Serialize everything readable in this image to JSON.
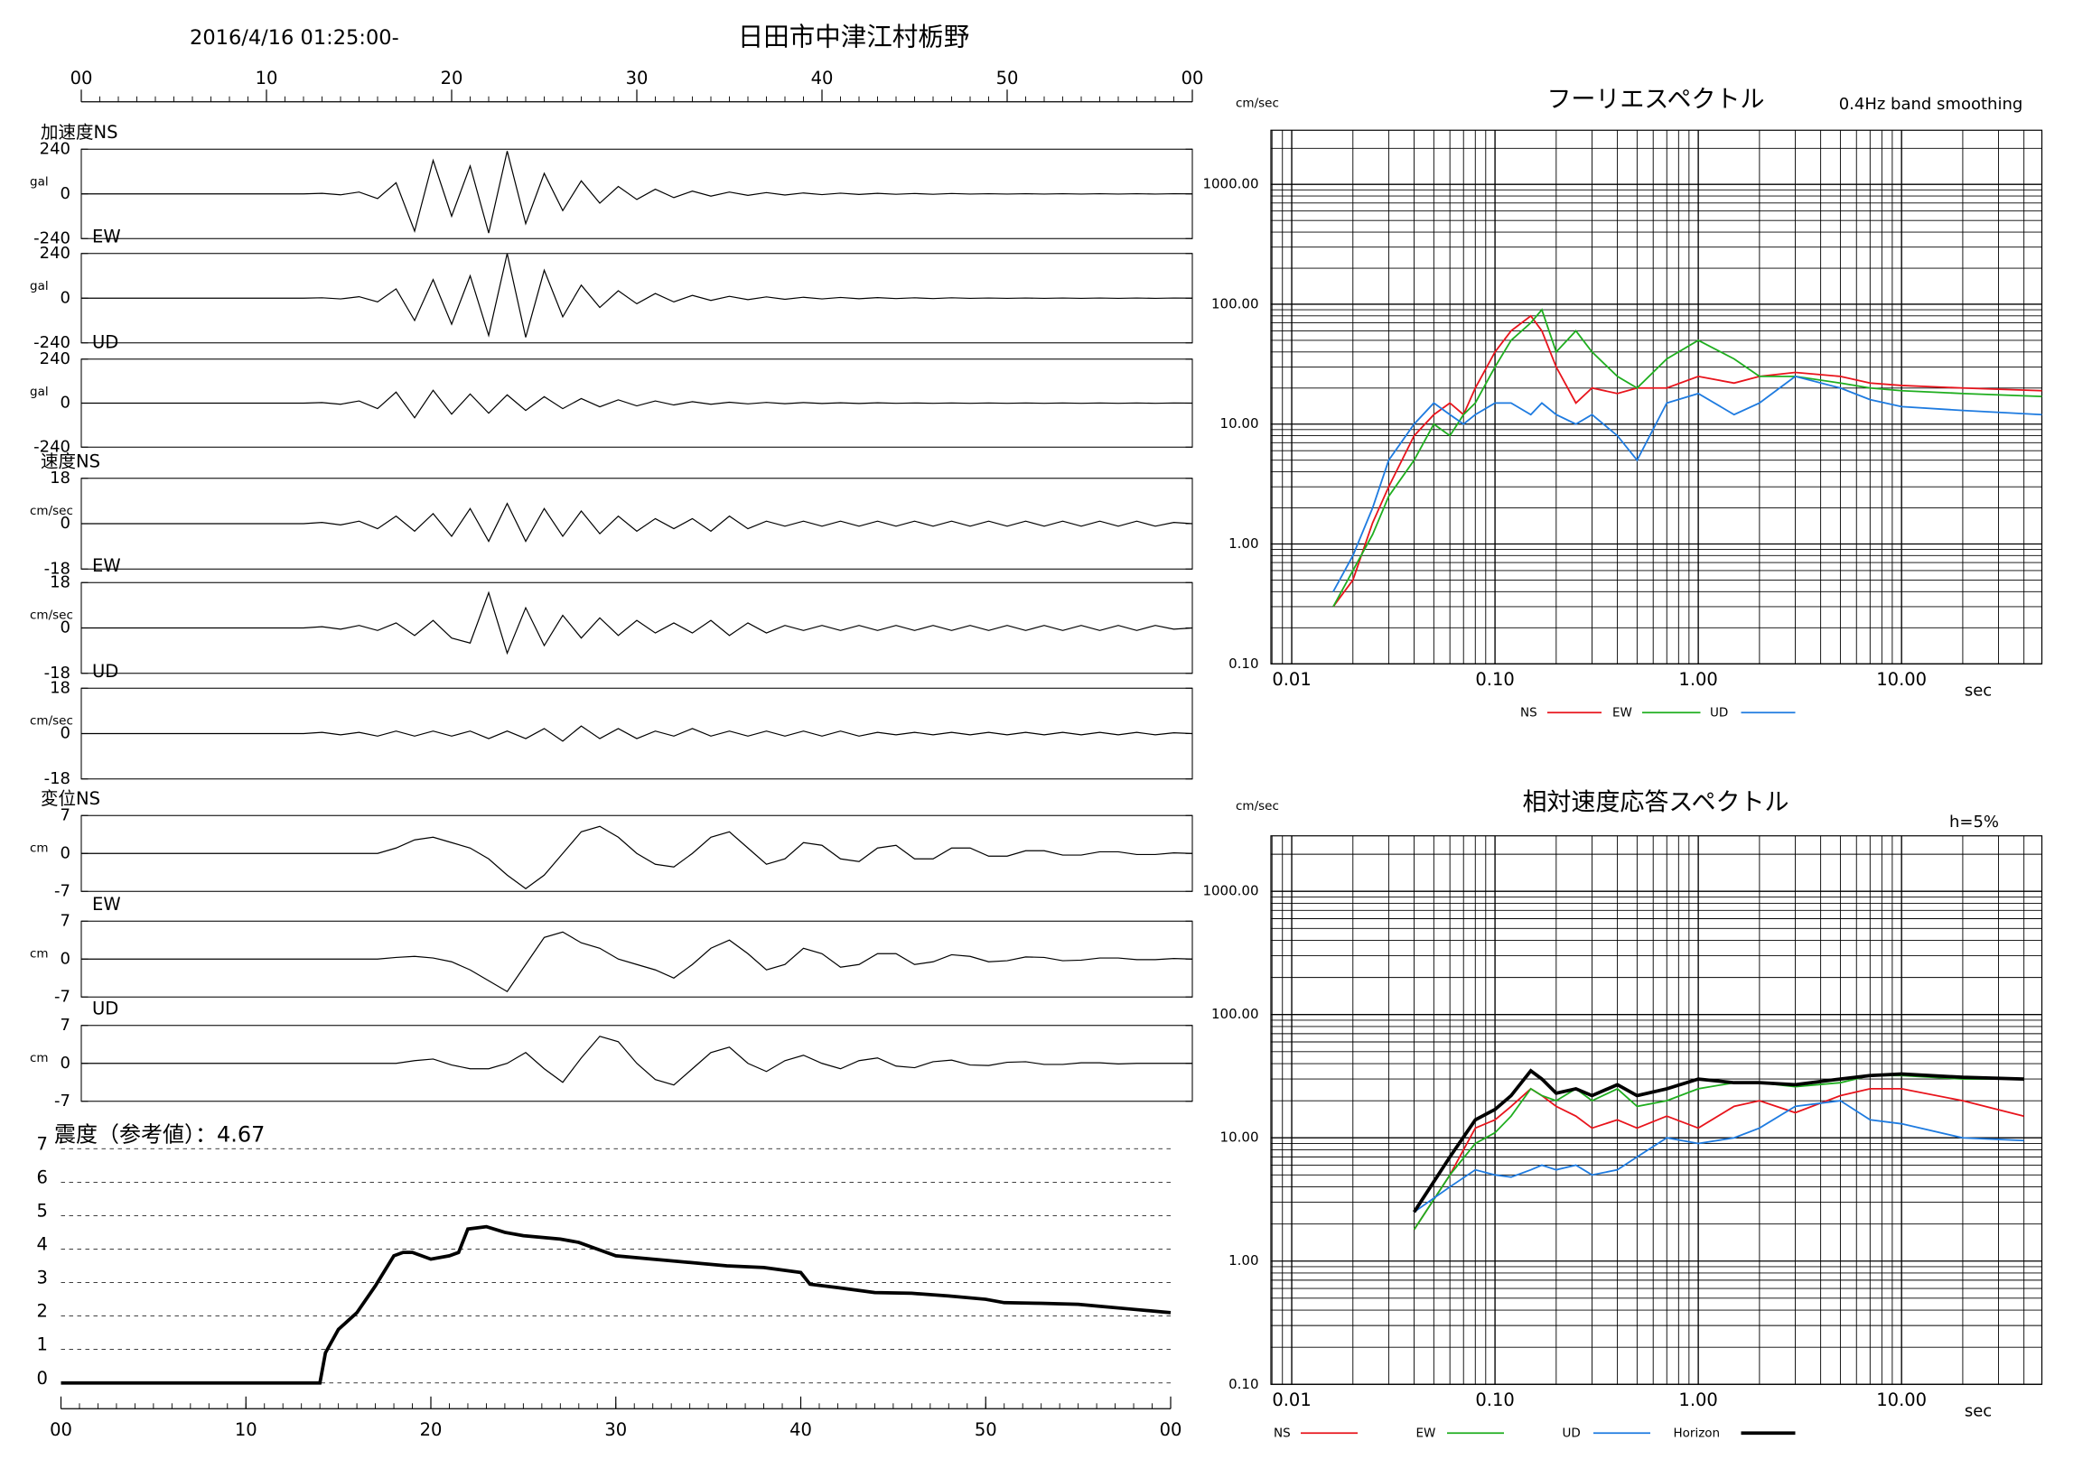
{
  "header": {
    "datetime": "2016/4/16 01:25:00-",
    "location": "日田市中津江村栃野"
  },
  "chart_data": [
    {
      "type": "waveform",
      "color": "#000000",
      "xlim": [
        0,
        60
      ],
      "xticks": [
        {
          "value": 0,
          "label": "00"
        },
        10,
        20,
        30,
        40,
        50,
        {
          "value": 60,
          "label": "00"
        }
      ],
      "x": [
        0,
        1,
        2,
        3,
        4,
        5,
        6,
        7,
        8,
        9,
        10,
        11,
        12,
        13,
        14,
        15,
        16,
        17,
        18,
        19,
        20,
        21,
        22,
        23,
        24,
        25,
        26,
        27,
        28,
        29,
        30,
        31,
        32,
        33,
        34,
        35,
        36,
        37,
        38,
        39,
        40,
        41,
        42,
        43,
        44,
        45,
        46,
        47,
        48,
        49,
        50,
        51,
        52,
        53,
        54,
        55,
        56,
        57,
        58,
        59,
        60
      ],
      "series": [
        {
          "name": "加速度NS",
          "ylabel": "gal",
          "ylim": [
            -240,
            240
          ],
          "yticks": [
            -240,
            0,
            240
          ],
          "values": [
            0,
            0,
            0,
            0,
            0,
            0,
            0,
            0,
            0,
            0,
            0,
            0,
            0,
            3,
            -5,
            10,
            -25,
            60,
            -200,
            180,
            -120,
            150,
            -210,
            230,
            -160,
            110,
            -90,
            70,
            -50,
            40,
            -30,
            25,
            -20,
            15,
            -12,
            10,
            -8,
            7,
            -6,
            5,
            -4,
            4,
            -3,
            3,
            -2,
            2,
            -2,
            2,
            -1,
            1,
            -1,
            1,
            -1,
            1,
            -1,
            1,
            -1,
            1,
            -1,
            1,
            0
          ]
        },
        {
          "name": "EW",
          "ylabel": "gal",
          "ylim": [
            -240,
            240
          ],
          "yticks": [
            -240,
            0,
            240
          ],
          "values": [
            0,
            0,
            0,
            0,
            0,
            0,
            0,
            0,
            0,
            0,
            0,
            0,
            0,
            2,
            -4,
            8,
            -20,
            50,
            -120,
            100,
            -140,
            120,
            -200,
            240,
            -210,
            150,
            -100,
            70,
            -50,
            40,
            -30,
            25,
            -20,
            15,
            -12,
            10,
            -8,
            7,
            -6,
            5,
            -4,
            4,
            -3,
            3,
            -2,
            2,
            -2,
            2,
            -1,
            1,
            -1,
            1,
            -1,
            1,
            -1,
            1,
            -1,
            1,
            -1,
            1,
            0
          ]
        },
        {
          "name": "UD",
          "ylabel": "gal",
          "ylim": [
            -240,
            240
          ],
          "yticks": [
            -240,
            0,
            240
          ],
          "values": [
            0,
            0,
            0,
            0,
            0,
            0,
            0,
            0,
            0,
            0,
            0,
            0,
            0,
            3,
            -6,
            12,
            -30,
            60,
            -80,
            70,
            -60,
            50,
            -55,
            45,
            -40,
            35,
            -30,
            25,
            -20,
            18,
            -15,
            12,
            -10,
            8,
            -6,
            5,
            -4,
            4,
            -3,
            3,
            -2,
            2,
            -2,
            2,
            -1,
            1,
            -1,
            1,
            -1,
            1,
            -1,
            1,
            -1,
            1,
            -1,
            1,
            -1,
            1,
            -1,
            1,
            0
          ]
        },
        {
          "name": "速度NS",
          "ylabel": "cm/sec",
          "ylim": [
            -18,
            18
          ],
          "yticks": [
            -18,
            0,
            18
          ],
          "values": [
            0,
            0,
            0,
            0,
            0,
            0,
            0,
            0,
            0,
            0,
            0,
            0,
            0,
            0.5,
            -0.5,
            1,
            -2,
            3,
            -3,
            4,
            -5,
            6,
            -7,
            8,
            -7,
            6,
            -5,
            5,
            -4,
            3,
            -3,
            2,
            -2,
            2,
            -3,
            3,
            -2,
            1,
            -1,
            1,
            -1,
            1,
            -1,
            1,
            -1,
            1,
            -1,
            1,
            -1,
            1,
            -1,
            1,
            -1,
            1,
            -1,
            1,
            -1,
            1,
            -1,
            0.5,
            0
          ]
        },
        {
          "name": "EW",
          "ylabel": "cm/sec",
          "ylim": [
            -18,
            18
          ],
          "yticks": [
            -18,
            0,
            18
          ],
          "values": [
            0,
            0,
            0,
            0,
            0,
            0,
            0,
            0,
            0,
            0,
            0,
            0,
            0,
            0.5,
            -0.5,
            1,
            -1,
            2,
            -3,
            3,
            -4,
            -6,
            14,
            -10,
            8,
            -7,
            5,
            -4,
            4,
            -3,
            3,
            -2,
            2,
            -2,
            3,
            -3,
            2,
            -2,
            1,
            -1,
            1,
            -1,
            1,
            -1,
            1,
            -1,
            1,
            -1,
            1,
            -1,
            1,
            -1,
            1,
            -1,
            1,
            -1,
            1,
            -1,
            1,
            -0.5,
            0
          ]
        },
        {
          "name": "UD",
          "ylabel": "cm/sec",
          "ylim": [
            -18,
            18
          ],
          "yticks": [
            -18,
            0,
            18
          ],
          "values": [
            0,
            0,
            0,
            0,
            0,
            0,
            0,
            0,
            0,
            0,
            0,
            0,
            0,
            0.5,
            -0.5,
            0.5,
            -1,
            1,
            -1,
            1,
            -1,
            1,
            -2,
            1,
            -2,
            2,
            -3,
            3,
            -2,
            2,
            -2,
            1,
            -1,
            2,
            -1,
            1,
            -1,
            1,
            -1,
            1,
            -1,
            1,
            -1,
            0.5,
            -0.5,
            0.5,
            -0.5,
            0.5,
            -0.5,
            0.5,
            -0.5,
            0.5,
            -0.5,
            0.5,
            -0.5,
            0.5,
            -0.5,
            0.5,
            -0.5,
            0.3,
            0
          ]
        },
        {
          "name": "変位NS",
          "ylabel": "cm",
          "ylim": [
            -7,
            7
          ],
          "yticks": [
            -7,
            0,
            7
          ],
          "values": [
            0,
            0,
            0,
            0,
            0,
            0,
            0,
            0,
            0,
            0,
            0,
            0,
            0,
            0,
            0,
            0,
            0,
            1,
            2.5,
            3,
            2,
            1,
            -1,
            -4,
            -6.5,
            -4,
            0,
            4,
            5,
            3,
            0,
            -2,
            -2.5,
            0,
            3,
            4,
            1,
            -2,
            -1,
            2,
            1.5,
            -1,
            -1.5,
            1,
            1.5,
            -1,
            -1,
            1,
            1,
            -0.5,
            -0.5,
            0.5,
            0.5,
            -0.3,
            -0.3,
            0.3,
            0.3,
            -0.2,
            -0.2,
            0.1,
            0
          ]
        },
        {
          "name": "EW",
          "ylabel": "cm",
          "ylim": [
            -7,
            7
          ],
          "yticks": [
            -7,
            0,
            7
          ],
          "values": [
            0,
            0,
            0,
            0,
            0,
            0,
            0,
            0,
            0,
            0,
            0,
            0,
            0,
            0,
            0,
            0,
            0,
            0.3,
            0.5,
            0.2,
            -0.5,
            -2,
            -4,
            -6,
            -1,
            4,
            5,
            3,
            2,
            0,
            -1,
            -2,
            -3.5,
            -1,
            2,
            3.5,
            1,
            -2,
            -1,
            2,
            1,
            -1.5,
            -1,
            1,
            1,
            -1,
            -0.5,
            0.8,
            0.5,
            -0.5,
            -0.3,
            0.4,
            0.3,
            -0.3,
            -0.2,
            0.2,
            0.2,
            -0.1,
            -0.1,
            0.1,
            0
          ]
        },
        {
          "name": "UD",
          "ylabel": "cm",
          "ylim": [
            -7,
            7
          ],
          "yticks": [
            -7,
            0,
            7
          ],
          "values": [
            0,
            0,
            0,
            0,
            0,
            0,
            0,
            0,
            0,
            0,
            0,
            0,
            0,
            0,
            0,
            0,
            0,
            0,
            0.5,
            0.8,
            -0.3,
            -1,
            -1,
            0,
            2,
            -1,
            -3.5,
            1,
            5,
            4,
            0,
            -3,
            -4,
            -1,
            2,
            3,
            0,
            -1.5,
            0.5,
            1.5,
            0,
            -1,
            0.5,
            1,
            -0.5,
            -0.8,
            0.3,
            0.6,
            -0.3,
            -0.4,
            0.2,
            0.3,
            -0.2,
            -0.2,
            0.1,
            0.1,
            -0.1,
            0,
            0,
            0,
            0
          ]
        }
      ]
    },
    {
      "type": "line",
      "title": "震度（参考値）：4.67",
      "color": "#000000",
      "grid": true,
      "xlim": [
        0,
        60
      ],
      "xticks": [
        {
          "value": 0,
          "label": "00"
        },
        10,
        20,
        30,
        40,
        50,
        {
          "value": 60,
          "label": "00"
        }
      ],
      "ylim": [
        0,
        7
      ],
      "yticks": [
        0,
        1,
        2,
        3,
        4,
        5,
        6,
        7
      ],
      "x": [
        0,
        14,
        14.3,
        15,
        16,
        17,
        18,
        18.5,
        19,
        20,
        21,
        21.5,
        22,
        23,
        24,
        25,
        26,
        27,
        28,
        29,
        30,
        32,
        34,
        36,
        38,
        40,
        40.5,
        42,
        44,
        46,
        48,
        50,
        51,
        53,
        55,
        56,
        58,
        60
      ],
      "values": [
        0,
        0,
        0.9,
        1.6,
        2.1,
        2.9,
        3.8,
        3.9,
        3.9,
        3.7,
        3.8,
        3.9,
        4.6,
        4.67,
        4.5,
        4.4,
        4.35,
        4.3,
        4.2,
        4.0,
        3.8,
        3.7,
        3.6,
        3.5,
        3.45,
        3.3,
        2.95,
        2.85,
        2.7,
        2.68,
        2.6,
        2.5,
        2.4,
        2.38,
        2.35,
        2.3,
        2.2,
        2.1
      ]
    },
    {
      "type": "line",
      "title": "フーリエスペクトル",
      "subtitle": "0.4Hz band smoothing",
      "ylabel": "cm/sec",
      "xlabel": "sec",
      "xscale": "log",
      "yscale": "log",
      "grid": true,
      "xlim": [
        0.0079,
        49
      ],
      "ylim": [
        0.1,
        2830
      ],
      "xticks": [
        {
          "value": 0.01,
          "label": "0.01"
        },
        {
          "value": 0.1,
          "label": "0.10"
        },
        {
          "value": 1,
          "label": "1.00"
        },
        {
          "value": 10,
          "label": "10.00"
        }
      ],
      "yticks": [
        {
          "value": 0.1,
          "label": "0.10"
        },
        {
          "value": 1,
          "label": "1.00"
        },
        {
          "value": 10,
          "label": "10.00"
        },
        {
          "value": 100,
          "label": "100.00"
        },
        {
          "value": 1000,
          "label": "1000.00"
        }
      ],
      "x": [
        0.016,
        0.02,
        0.025,
        0.03,
        0.04,
        0.05,
        0.06,
        0.07,
        0.08,
        0.1,
        0.12,
        0.15,
        0.17,
        0.2,
        0.25,
        0.3,
        0.4,
        0.5,
        0.7,
        1,
        1.5,
        2,
        3,
        5,
        7,
        10,
        20,
        49
      ],
      "series": [
        {
          "name": "NS",
          "color": "#e8141c",
          "values": [
            0.3,
            0.5,
            1.5,
            3,
            8,
            12,
            15,
            12,
            20,
            40,
            60,
            80,
            60,
            30,
            15,
            20,
            18,
            20,
            20,
            25,
            22,
            25,
            27,
            25,
            22,
            21,
            20,
            19
          ]
        },
        {
          "name": "EW",
          "color": "#1fae1f",
          "values": [
            0.3,
            0.6,
            1.2,
            2.5,
            5,
            10,
            8,
            12,
            15,
            30,
            50,
            70,
            90,
            40,
            60,
            40,
            25,
            20,
            35,
            50,
            35,
            25,
            25,
            22,
            20,
            19,
            18,
            17
          ]
        },
        {
          "name": "UD",
          "color": "#1e7be0",
          "values": [
            0.4,
            0.8,
            2,
            5,
            10,
            15,
            12,
            10,
            12,
            15,
            15,
            12,
            15,
            12,
            10,
            12,
            8,
            5,
            15,
            18,
            12,
            15,
            25,
            20,
            16,
            14,
            13,
            12
          ]
        }
      ]
    },
    {
      "type": "line",
      "title": "相対速度応答スペクトル",
      "annotation": "h=5%",
      "ylabel": "cm/sec",
      "xlabel": "sec",
      "xscale": "log",
      "yscale": "log",
      "grid": true,
      "xlim": [
        0.0079,
        49
      ],
      "ylim": [
        0.1,
        2820
      ],
      "xticks": [
        {
          "value": 0.01,
          "label": "0.01"
        },
        {
          "value": 0.1,
          "label": "0.10"
        },
        {
          "value": 1,
          "label": "1.00"
        },
        {
          "value": 10,
          "label": "10.00"
        }
      ],
      "yticks": [
        {
          "value": 0.1,
          "label": "0.10"
        },
        {
          "value": 1,
          "label": "1.00"
        },
        {
          "value": 10,
          "label": "10.00"
        },
        {
          "value": 100,
          "label": "100.00"
        },
        {
          "value": 1000,
          "label": "1000.00"
        }
      ],
      "x": [
        0.04,
        0.06,
        0.08,
        0.1,
        0.12,
        0.15,
        0.17,
        0.2,
        0.25,
        0.3,
        0.4,
        0.5,
        0.7,
        1,
        1.5,
        2,
        3,
        5,
        7,
        10,
        20,
        40
      ],
      "series": [
        {
          "name": "NS",
          "color": "#e8141c",
          "values": [
            1.8,
            5,
            12,
            14,
            18,
            25,
            22,
            18,
            15,
            12,
            14,
            12,
            15,
            12,
            18,
            20,
            16,
            22,
            25,
            25,
            20,
            15
          ]
        },
        {
          "name": "EW",
          "color": "#1fae1f",
          "values": [
            1.8,
            5,
            9,
            11,
            15,
            25,
            22,
            20,
            25,
            20,
            25,
            18,
            20,
            25,
            28,
            28,
            26,
            28,
            32,
            32,
            30,
            30
          ]
        },
        {
          "name": "UD",
          "color": "#1e7be0",
          "values": [
            2.5,
            4,
            5.5,
            5,
            4.8,
            5.5,
            6,
            5.5,
            6,
            5,
            5.5,
            7,
            10,
            9,
            10,
            12,
            18,
            20,
            14,
            13,
            10,
            9.5
          ]
        },
        {
          "name": "Horizon",
          "color": "#000000",
          "values": [
            2.5,
            7,
            14,
            17,
            22,
            35,
            30,
            23,
            25,
            22,
            27,
            22,
            25,
            30,
            28,
            28,
            27,
            30,
            32,
            33,
            31,
            30
          ]
        }
      ]
    }
  ]
}
